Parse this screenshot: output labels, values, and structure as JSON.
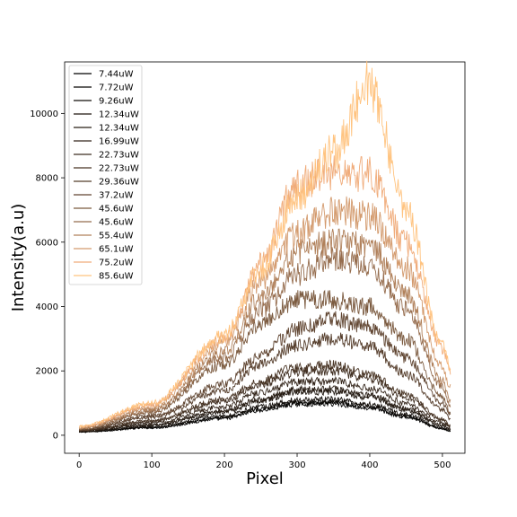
{
  "chart_data": {
    "type": "line",
    "title": "",
    "xlabel": "Pixel",
    "ylabel": "Intensity(a.u)",
    "xlim": [
      -20,
      531
    ],
    "ylim": [
      -560,
      11600
    ],
    "x_ticks": [
      0,
      100,
      200,
      300,
      400,
      500
    ],
    "y_ticks": [
      0,
      2000,
      4000,
      6000,
      8000,
      10000
    ],
    "grid": false,
    "legend_position": "top-left",
    "pixel_range": [
      0,
      511
    ],
    "series": [
      {
        "name": "7.44uW",
        "color": "#000000",
        "points": [
          [
            0,
            100
          ],
          [
            100,
            230
          ],
          [
            200,
            520
          ],
          [
            250,
            780
          ],
          [
            300,
            970
          ],
          [
            350,
            980
          ],
          [
            400,
            840
          ],
          [
            450,
            560
          ],
          [
            500,
            200
          ],
          [
            511,
            120
          ]
        ]
      },
      {
        "name": "7.72uW",
        "color": "#070604",
        "points": [
          [
            0,
            105
          ],
          [
            100,
            245
          ],
          [
            200,
            550
          ],
          [
            250,
            820
          ],
          [
            300,
            1010
          ],
          [
            350,
            1030
          ],
          [
            400,
            880
          ],
          [
            450,
            590
          ],
          [
            500,
            210
          ],
          [
            511,
            130
          ]
        ]
      },
      {
        "name": "9.26uW",
        "color": "#120d09",
        "points": [
          [
            0,
            110
          ],
          [
            100,
            265
          ],
          [
            200,
            600
          ],
          [
            250,
            890
          ],
          [
            300,
            1100
          ],
          [
            350,
            1120
          ],
          [
            400,
            960
          ],
          [
            450,
            650
          ],
          [
            500,
            240
          ],
          [
            511,
            150
          ]
        ]
      },
      {
        "name": "12.34uW",
        "color": "#1d150e",
        "points": [
          [
            0,
            120
          ],
          [
            100,
            310
          ],
          [
            200,
            720
          ],
          [
            250,
            1080
          ],
          [
            300,
            1340
          ],
          [
            350,
            1360
          ],
          [
            400,
            1170
          ],
          [
            450,
            790
          ],
          [
            500,
            300
          ],
          [
            511,
            190
          ]
        ]
      },
      {
        "name": "12.34uW",
        "color": "#281d14",
        "points": [
          [
            0,
            125
          ],
          [
            100,
            330
          ],
          [
            200,
            760
          ],
          [
            250,
            1140
          ],
          [
            300,
            1420
          ],
          [
            350,
            1440
          ],
          [
            400,
            1240
          ],
          [
            450,
            840
          ],
          [
            500,
            320
          ],
          [
            511,
            200
          ]
        ]
      },
      {
        "name": "16.99uW",
        "color": "#33251a",
        "points": [
          [
            0,
            135
          ],
          [
            100,
            380
          ],
          [
            200,
            890
          ],
          [
            250,
            1340
          ],
          [
            300,
            1650
          ],
          [
            350,
            1690
          ],
          [
            400,
            1460
          ],
          [
            450,
            990
          ],
          [
            500,
            380
          ],
          [
            511,
            240
          ]
        ]
      },
      {
        "name": "22.73uW",
        "color": "#3e2d20",
        "points": [
          [
            0,
            145
          ],
          [
            100,
            430
          ],
          [
            200,
            1050
          ],
          [
            250,
            1580
          ],
          [
            300,
            1960
          ],
          [
            350,
            2010
          ],
          [
            400,
            1740
          ],
          [
            450,
            1180
          ],
          [
            500,
            460
          ],
          [
            511,
            290
          ]
        ]
      },
      {
        "name": "22.73uW",
        "color": "#493525",
        "points": [
          [
            0,
            150
          ],
          [
            100,
            460
          ],
          [
            200,
            1130
          ],
          [
            250,
            1700
          ],
          [
            300,
            2110
          ],
          [
            350,
            2170
          ],
          [
            400,
            1880
          ],
          [
            450,
            1280
          ],
          [
            500,
            500
          ],
          [
            511,
            310
          ]
        ]
      },
      {
        "name": "29.36uW",
        "color": "#553d2b",
        "points": [
          [
            0,
            160
          ],
          [
            100,
            560
          ],
          [
            200,
            1400
          ],
          [
            250,
            2200
          ],
          [
            300,
            2800
          ],
          [
            350,
            3000
          ],
          [
            400,
            2750
          ],
          [
            450,
            1900
          ],
          [
            500,
            800
          ],
          [
            511,
            500
          ]
        ]
      },
      {
        "name": "37.2uW",
        "color": "#604531",
        "points": [
          [
            0,
            170
          ],
          [
            100,
            600
          ],
          [
            200,
            1600
          ],
          [
            250,
            2500
          ],
          [
            300,
            3300
          ],
          [
            350,
            3600
          ],
          [
            400,
            3350
          ],
          [
            450,
            2400
          ],
          [
            500,
            1000
          ],
          [
            511,
            650
          ]
        ]
      },
      {
        "name": "45.6uW",
        "color": "#7b5a3f",
        "points": [
          [
            0,
            190
          ],
          [
            100,
            700
          ],
          [
            200,
            2200
          ],
          [
            250,
            3500
          ],
          [
            300,
            4200
          ],
          [
            350,
            4200
          ],
          [
            400,
            4000
          ],
          [
            450,
            3000
          ],
          [
            500,
            1200
          ],
          [
            511,
            700
          ]
        ]
      },
      {
        "name": "45.6uW",
        "color": "#956c4d",
        "points": [
          [
            0,
            200
          ],
          [
            100,
            750
          ],
          [
            200,
            2400
          ],
          [
            250,
            3900
          ],
          [
            300,
            5000
          ],
          [
            350,
            5500
          ],
          [
            400,
            5200
          ],
          [
            450,
            3900
          ],
          [
            500,
            1500
          ],
          [
            511,
            900
          ]
        ]
      },
      {
        "name": "55.4uW",
        "color": "#b0805a",
        "points": [
          [
            0,
            220
          ],
          [
            100,
            800
          ],
          [
            200,
            2600
          ],
          [
            250,
            4300
          ],
          [
            300,
            5700
          ],
          [
            350,
            6000
          ],
          [
            400,
            5900
          ],
          [
            450,
            4400
          ],
          [
            500,
            1700
          ],
          [
            511,
            1100
          ]
        ]
      },
      {
        "name": "65.1uW",
        "color": "#d39a6d",
        "points": [
          [
            0,
            240
          ],
          [
            100,
            900
          ],
          [
            200,
            2900
          ],
          [
            250,
            4800
          ],
          [
            300,
            6300
          ],
          [
            350,
            7000
          ],
          [
            400,
            6800
          ],
          [
            450,
            5200
          ],
          [
            500,
            2100
          ],
          [
            511,
            1500
          ]
        ]
      },
      {
        "name": "75.2uW",
        "color": "#f0ac7b",
        "points": [
          [
            0,
            260
          ],
          [
            100,
            950
          ],
          [
            200,
            3000
          ],
          [
            250,
            5300
          ],
          [
            300,
            7800
          ],
          [
            350,
            8200
          ],
          [
            400,
            8100
          ],
          [
            450,
            6000
          ],
          [
            500,
            2700
          ],
          [
            511,
            2000
          ]
        ]
      },
      {
        "name": "85.6uW",
        "color": "#ffc37f",
        "points": [
          [
            0,
            280
          ],
          [
            100,
            1000
          ],
          [
            200,
            3100
          ],
          [
            250,
            5200
          ],
          [
            300,
            7400
          ],
          [
            350,
            8800
          ],
          [
            400,
            10900
          ],
          [
            450,
            7000
          ],
          [
            500,
            2800
          ],
          [
            511,
            2100
          ]
        ]
      }
    ]
  }
}
